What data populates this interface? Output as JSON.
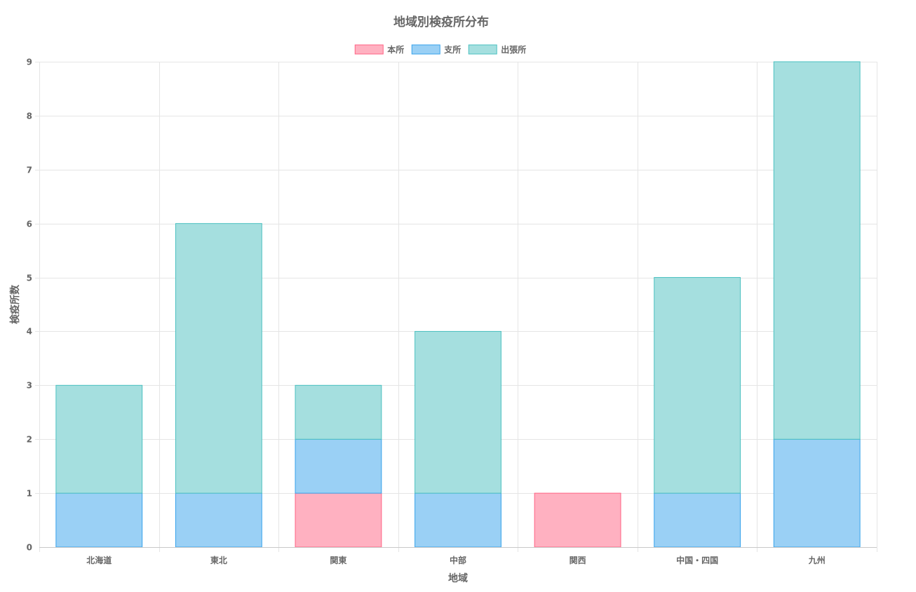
{
  "chart_data": {
    "type": "bar",
    "stacked": true,
    "title": "地域別検疫所分布",
    "xlabel": "地域",
    "ylabel": "検疫所数",
    "categories": [
      "北海道",
      "東北",
      "関東",
      "中部",
      "関西",
      "中国・四国",
      "九州"
    ],
    "series": [
      {
        "name": "本所",
        "values": [
          0,
          0,
          1,
          0,
          1,
          0,
          0
        ],
        "fill": "#ffb1c1",
        "stroke": "#ff6384"
      },
      {
        "name": "支所",
        "values": [
          1,
          1,
          1,
          1,
          0,
          1,
          2
        ],
        "fill": "#9ad0f5",
        "stroke": "#36a2eb"
      },
      {
        "name": "出張所",
        "values": [
          2,
          5,
          1,
          3,
          0,
          4,
          7
        ],
        "fill": "#a5dfdf",
        "stroke": "#4bc0c0"
      }
    ],
    "ylim": [
      0,
      9
    ],
    "yticks": [
      0,
      1,
      2,
      3,
      4,
      5,
      6,
      7,
      8,
      9
    ],
    "grid": true,
    "legend_position": "top-center"
  }
}
